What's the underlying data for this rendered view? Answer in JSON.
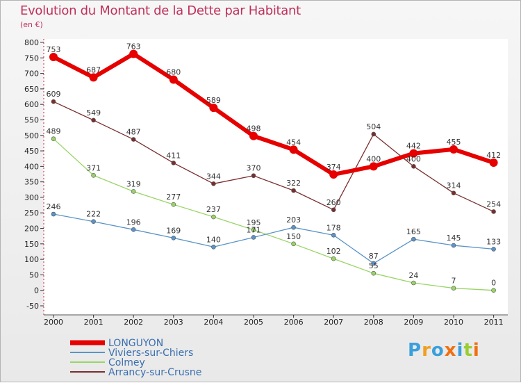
{
  "title": "Evolution du Montant de la Dette par Habitant",
  "subtitle": "(en €)",
  "logo": "Proxiti",
  "chart_data": {
    "type": "line",
    "title": "Evolution du Montant de la Dette par Habitant",
    "ylabel": "(en €)",
    "xlabel": "",
    "ylim": [
      -50,
      800
    ],
    "y_ticks": [
      "-50",
      "0",
      "50",
      "100",
      "150",
      "200",
      "250",
      "300",
      "350",
      "400",
      "450",
      "500",
      "550",
      "600",
      "650",
      "700",
      "750",
      "800"
    ],
    "categories": [
      "2000",
      "2001",
      "2002",
      "2003",
      "2004",
      "2005",
      "2006",
      "2007",
      "2008",
      "2009",
      "2010",
      "2011"
    ],
    "grid": false,
    "legend_position": "bottom-left",
    "series": [
      {
        "name": "LONGUYON",
        "color": "#e60000",
        "values": [
          753,
          687,
          763,
          680,
          589,
          498,
          454,
          374,
          400,
          442,
          455,
          412
        ]
      },
      {
        "name": "Viviers-sur-Chiers",
        "color": "#5a94c8",
        "values": [
          246,
          222,
          196,
          169,
          140,
          171,
          203,
          178,
          87,
          165,
          145,
          133
        ]
      },
      {
        "name": "Colmey",
        "color": "#99d466",
        "values": [
          489,
          371,
          319,
          277,
          237,
          195,
          150,
          102,
          55,
          24,
          7,
          0
        ]
      },
      {
        "name": "Arrancy-sur-Crusne",
        "color": "#7a2e2e",
        "values": [
          609,
          549,
          487,
          411,
          344,
          370,
          322,
          260,
          504,
          400,
          314,
          254
        ]
      }
    ]
  }
}
